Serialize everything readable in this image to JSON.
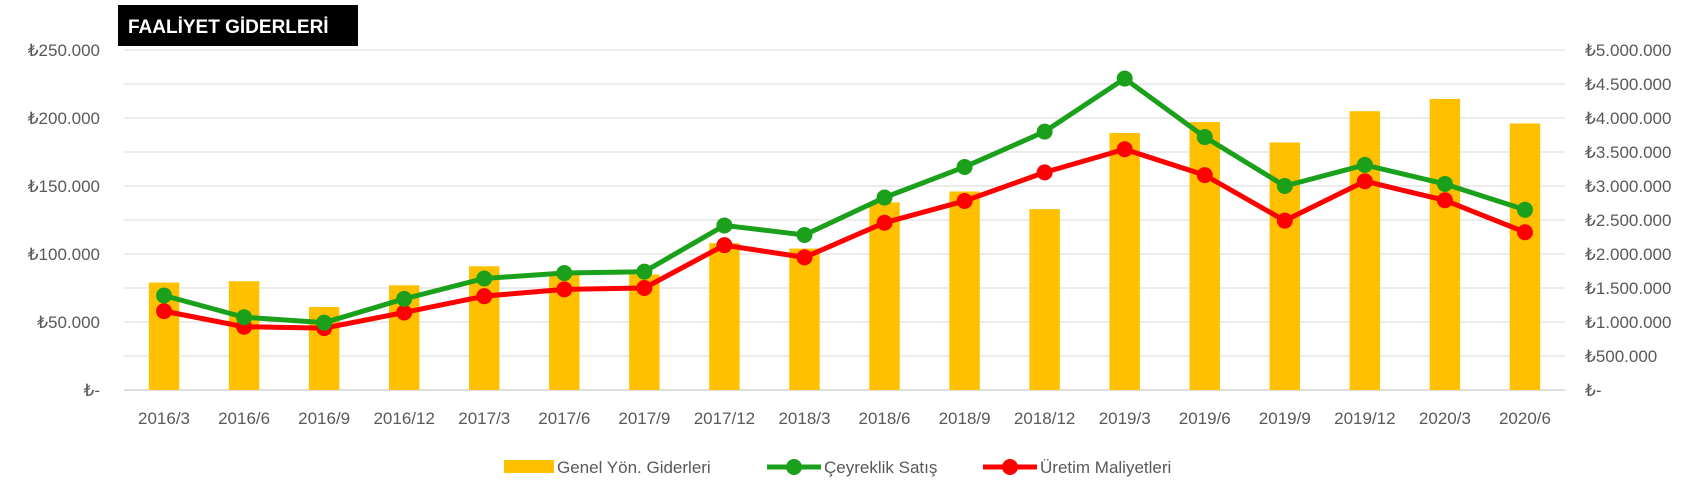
{
  "chart_data": {
    "type": "bar+line",
    "title": "FAALİYET GİDERLERİ",
    "categories": [
      "2016/3",
      "2016/6",
      "2016/9",
      "2016/12",
      "2017/3",
      "2017/6",
      "2017/9",
      "2017/12",
      "2018/3",
      "2018/6",
      "2018/9",
      "2018/12",
      "2019/3",
      "2019/6",
      "2019/9",
      "2019/12",
      "2020/3",
      "2020/6"
    ],
    "y_left": {
      "range": [
        0,
        250000
      ],
      "ticks": [
        0,
        50000,
        100000,
        150000,
        200000,
        250000
      ],
      "tick_labels": [
        "₺-",
        "₺50.000",
        "₺100.000",
        "₺150.000",
        "₺200.000",
        "₺250.000"
      ]
    },
    "y_right": {
      "range": [
        0,
        5000000
      ],
      "ticks": [
        0,
        500000,
        1000000,
        1500000,
        2000000,
        2500000,
        3000000,
        3500000,
        4000000,
        4500000,
        5000000
      ],
      "tick_labels": [
        "₺-",
        "₺500.000",
        "₺1.000.000",
        "₺1.500.000",
        "₺2.000.000",
        "₺2.500.000",
        "₺3.000.000",
        "₺3.500.000",
        "₺4.000.000",
        "₺4.500.000",
        "₺5.000.000"
      ]
    },
    "grid": true,
    "legend_position": "bottom",
    "series": [
      {
        "name": "Genel Yön. Giderleri",
        "type": "bar",
        "axis": "left",
        "color": "#FFC000",
        "values": [
          79000,
          80000,
          61000,
          77000,
          91000,
          86000,
          85000,
          108000,
          104000,
          138000,
          146000,
          133000,
          189000,
          197000,
          182000,
          205000,
          214000,
          196000
        ]
      },
      {
        "name": "Çeyreklik Satış",
        "type": "line",
        "axis": "right",
        "color": "#1AA01A",
        "values": [
          1390000,
          1070000,
          990000,
          1340000,
          1640000,
          1720000,
          1740000,
          2420000,
          2280000,
          2830000,
          3280000,
          3800000,
          4580000,
          3720000,
          3000000,
          3310000,
          3030000,
          2650000
        ]
      },
      {
        "name": "Üretim Maliyetleri",
        "type": "line",
        "axis": "right",
        "color": "#FF0000",
        "values": [
          1160000,
          930000,
          910000,
          1140000,
          1380000,
          1480000,
          1500000,
          2130000,
          1950000,
          2460000,
          2780000,
          3200000,
          3540000,
          3160000,
          2490000,
          3070000,
          2790000,
          2320000
        ]
      }
    ]
  }
}
